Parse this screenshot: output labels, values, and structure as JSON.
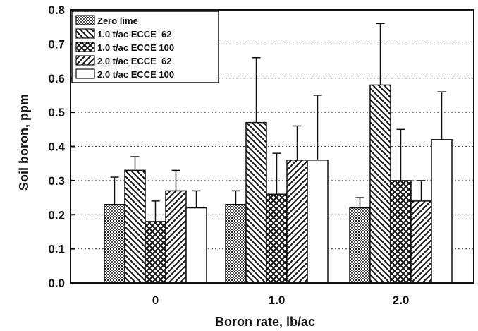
{
  "chart_data": {
    "type": "bar",
    "xlabel": "Boron rate, lb/ac",
    "ylabel": "Soil boron, ppm",
    "ylim": [
      0,
      0.8
    ],
    "yticks": [
      "0.0",
      "0.1",
      "0.2",
      "0.3",
      "0.4",
      "0.5",
      "0.6",
      "0.7",
      "0.8"
    ],
    "categories": [
      "0",
      "1.0",
      "2.0"
    ],
    "grid": "horizontal dotted",
    "legend_position": "top-left",
    "series": [
      {
        "name": "Zero lime",
        "pattern": "dots",
        "values": [
          0.23,
          0.23,
          0.22
        ],
        "errors": [
          0.08,
          0.04,
          0.03
        ]
      },
      {
        "name": "1.0 t/ac ECCE  62",
        "pattern": "back-diagonal",
        "values": [
          0.33,
          0.47,
          0.58
        ],
        "errors": [
          0.04,
          0.19,
          0.18
        ]
      },
      {
        "name": "1.0 t/ac ECCE 100",
        "pattern": "crosshatch",
        "values": [
          0.18,
          0.26,
          0.3
        ],
        "errors": [
          0.06,
          0.12,
          0.15
        ]
      },
      {
        "name": "2.0 t/ac ECCE  62",
        "pattern": "forward-diagonal",
        "values": [
          0.27,
          0.36,
          0.24
        ],
        "errors": [
          0.06,
          0.1,
          0.06
        ]
      },
      {
        "name": "2.0 t/ac ECCE 100",
        "pattern": "none",
        "values": [
          0.22,
          0.36,
          0.42
        ],
        "errors": [
          0.05,
          0.19,
          0.14
        ]
      }
    ]
  }
}
